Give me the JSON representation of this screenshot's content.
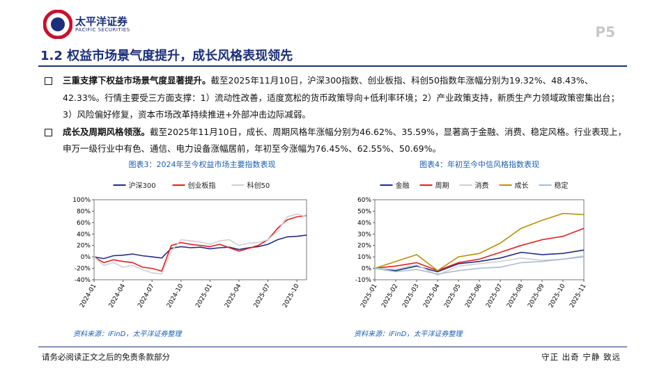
{
  "header": {
    "logo_cn": "太平洋证券",
    "logo_en": "PACIFIC SECURITIES",
    "page": "P5"
  },
  "section_title": "1.2 权益市场景气度提升，成长风格表现领先",
  "bullets": [
    {
      "bold": "三重支撑下权益市场景气度显著提升。",
      "text": "截至2025年11月10日，沪深300指数、创业板指、科创50指数年涨幅分别为19.32%、48.43%、42.33%。行情主要受三方面支撑：1）流动性改善，适度宽松的货币政策导向+低利率环境；2）产业政策支持，新质生产力领域政策密集出台；3）风险偏好修复，资本市场改革持续推进+外部冲击边际减弱。"
    },
    {
      "bold": "成长及周期风格领涨。",
      "text": "截至2025年11月10日，成长、周期风格年涨幅分别为46.62%、35.59%，显著高于金融、消费、稳定风格。行业表现上，申万一级行业中有色、通信、电力设备涨幅居前，年初至今涨幅为76.45%、62.55%、50.69%。"
    }
  ],
  "chart_data": [
    {
      "type": "line",
      "title": "图表3：2024年至今权益市场主要指数表现",
      "source": "资料来源：iFinD，太平洋证券整理",
      "x": [
        "2024-01",
        "2024-02",
        "2024-03",
        "2024-04",
        "2024-05",
        "2024-06",
        "2024-07",
        "2024-08",
        "2024-09",
        "2024-10",
        "2024-11",
        "2024-12",
        "2025-01",
        "2025-02",
        "2025-03",
        "2025-04",
        "2025-05",
        "2025-06",
        "2025-07",
        "2025-08",
        "2025-09",
        "2025-10",
        "2025-11"
      ],
      "xlim": [
        "2024-01",
        "2025-11"
      ],
      "xticks": [
        "2024-01",
        "2024-04",
        "2024-07",
        "2024-10",
        "2025-01",
        "2025-04",
        "2025-07",
        "2025-10"
      ],
      "ylim": [
        -40,
        100
      ],
      "yticks": [
        {
          "value": -40,
          "label": "-40%"
        },
        {
          "value": -20,
          "label": "-20%"
        },
        {
          "value": 0,
          "label": "0%"
        },
        {
          "value": 20,
          "label": "20%"
        },
        {
          "value": 40,
          "label": "40%"
        },
        {
          "value": 60,
          "label": "60%"
        },
        {
          "value": 80,
          "label": "80%"
        },
        {
          "value": 100,
          "label": "100%"
        }
      ],
      "series": [
        {
          "name": "沪深300",
          "color": "#1f2d86",
          "values": [
            0,
            -3,
            2,
            3,
            5,
            2,
            0,
            -2,
            15,
            18,
            16,
            17,
            14,
            16,
            17,
            13,
            16,
            18,
            22,
            30,
            35,
            36,
            38
          ]
        },
        {
          "name": "创业板指",
          "color": "#e0201f",
          "values": [
            0,
            -10,
            -5,
            -8,
            -10,
            -18,
            -20,
            -25,
            20,
            25,
            22,
            20,
            18,
            22,
            16,
            10,
            15,
            20,
            30,
            50,
            65,
            70,
            72
          ]
        },
        {
          "name": "科创50",
          "color": "#cfcfcf",
          "values": [
            0,
            -15,
            -10,
            -18,
            -15,
            -22,
            -28,
            -30,
            10,
            30,
            28,
            26,
            22,
            28,
            30,
            20,
            24,
            25,
            30,
            45,
            70,
            75,
            70
          ]
        }
      ]
    },
    {
      "type": "line",
      "title": "图表4：年初至今中信风格指数表现",
      "source": "资料来源：iFinD，太平洋证券整理",
      "x": [
        "2025-01",
        "2025-02",
        "2025-03",
        "2025-04",
        "2025-05",
        "2025-06",
        "2025-07",
        "2025-08",
        "2025-09",
        "2025-10",
        "2025-11"
      ],
      "xlim": [
        "2025-01",
        "2025-11"
      ],
      "xticks": [
        "2025-01",
        "2025-02",
        "2025-03",
        "2025-04",
        "2025-05",
        "2025-06",
        "2025-07",
        "2025-08",
        "2025-09",
        "2025-10",
        "2025-11"
      ],
      "ylim": [
        -10,
        60
      ],
      "yticks": [
        {
          "value": -10,
          "label": "-10%"
        },
        {
          "value": 0,
          "label": "0%"
        },
        {
          "value": 10,
          "label": "10%"
        },
        {
          "value": 20,
          "label": "20%"
        },
        {
          "value": 30,
          "label": "30%"
        },
        {
          "value": 40,
          "label": "40%"
        },
        {
          "value": 50,
          "label": "50%"
        },
        {
          "value": 60,
          "label": "60%"
        }
      ],
      "series": [
        {
          "name": "金融",
          "color": "#1f2d86",
          "values": [
            0,
            -2,
            2,
            -3,
            4,
            6,
            9,
            14,
            12,
            13,
            16
          ]
        },
        {
          "name": "周期",
          "color": "#e0201f",
          "values": [
            0,
            2,
            5,
            -2,
            5,
            8,
            14,
            20,
            25,
            28,
            35
          ]
        },
        {
          "name": "消费",
          "color": "#cfcfcf",
          "values": [
            0,
            -1,
            3,
            -6,
            2,
            4,
            6,
            9,
            7,
            8,
            11
          ]
        },
        {
          "name": "成长",
          "color": "#b8900a",
          "values": [
            0,
            6,
            12,
            -2,
            10,
            13,
            22,
            35,
            42,
            48,
            47
          ]
        },
        {
          "name": "稳定",
          "color": "#a9bcd6",
          "values": [
            0,
            -3,
            -1,
            -5,
            -2,
            0,
            1,
            5,
            6,
            8,
            10
          ]
        }
      ]
    }
  ],
  "footer": {
    "left": "请务必阅读正文之后的免责条款部分",
    "right": "守正 出奇 宁静 致远"
  }
}
